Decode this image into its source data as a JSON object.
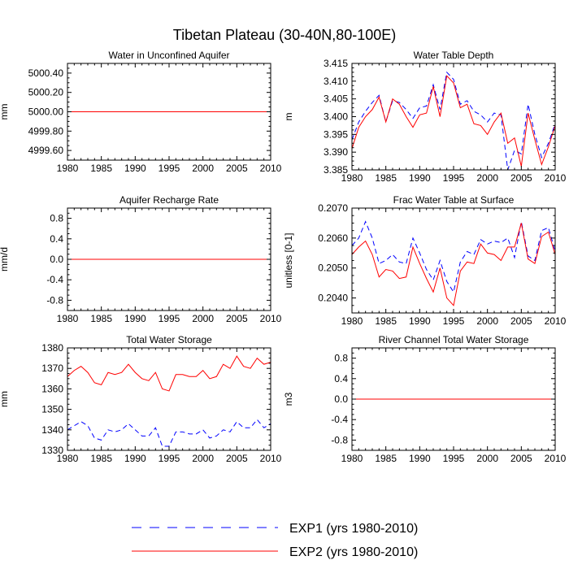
{
  "figure": {
    "title": "Tibetan Plateau (30-40N,80-100E)",
    "legend": [
      {
        "label": "EXP1 (yrs 1980-2010)",
        "color": "#0000ff",
        "dash": true
      },
      {
        "label": "EXP2 (yrs 1980-2010)",
        "color": "#ff0000",
        "dash": false
      }
    ]
  },
  "chart_data": [
    {
      "type": "line",
      "title": "Water in Unconfined Aquifer",
      "ylabel": "mm",
      "xlim": [
        1980,
        2010
      ],
      "ylim": [
        4999.5,
        5000.5
      ],
      "xticks": [
        1980,
        1985,
        1990,
        1995,
        2000,
        2005,
        2010
      ],
      "yticks": [
        4999.6,
        4999.8,
        5000.0,
        5000.2,
        5000.4
      ],
      "ytick_labels": [
        "4999.60",
        "4999.80",
        "5000.00",
        "5000.20",
        "5000.40"
      ],
      "x": [
        1980,
        2010
      ],
      "series": [
        {
          "name": "EXP1 (yrs 1980-2010)",
          "values": [
            5000.0,
            5000.0
          ]
        },
        {
          "name": "EXP2 (yrs 1980-2010)",
          "values": [
            5000.0,
            5000.0
          ]
        }
      ]
    },
    {
      "type": "line",
      "title": "Water Table Depth",
      "ylabel": "m",
      "xlim": [
        1980,
        2010
      ],
      "ylim": [
        3.385,
        3.415
      ],
      "xticks": [
        1980,
        1985,
        1990,
        1995,
        2000,
        2005,
        2010
      ],
      "yticks": [
        3.385,
        3.39,
        3.395,
        3.4,
        3.405,
        3.41,
        3.415
      ],
      "ytick_labels": [
        "3.385",
        "3.390",
        "3.395",
        "3.400",
        "3.405",
        "3.410",
        "3.415"
      ],
      "x": [
        1980,
        1981,
        1982,
        1983,
        1984,
        1985,
        1986,
        1987,
        1988,
        1989,
        1990,
        1991,
        1992,
        1993,
        1994,
        1995,
        1996,
        1997,
        1998,
        1999,
        2000,
        2001,
        2002,
        2003,
        2004,
        2005,
        2006,
        2007,
        2008,
        2009,
        2010
      ],
      "series": [
        {
          "name": "EXP1 (yrs 1980-2010)",
          "values": [
            3.3935,
            3.3985,
            3.4015,
            3.404,
            3.406,
            3.3985,
            3.4045,
            3.404,
            3.402,
            3.3995,
            3.4025,
            3.403,
            3.409,
            3.402,
            3.4125,
            3.4105,
            3.4035,
            3.4045,
            3.4015,
            3.4005,
            3.3985,
            3.401,
            3.4005,
            3.385,
            3.3905,
            3.3895,
            3.4035,
            3.395,
            3.3885,
            3.3925,
            3.398
          ]
        },
        {
          "name": "EXP2 (yrs 1980-2010)",
          "values": [
            3.391,
            3.397,
            3.4,
            3.402,
            3.4055,
            3.3985,
            3.405,
            3.4035,
            3.4,
            3.397,
            3.4005,
            3.401,
            3.4085,
            3.4,
            3.4115,
            3.4095,
            3.4025,
            3.4035,
            3.398,
            3.3975,
            3.395,
            3.3985,
            3.401,
            3.3925,
            3.394,
            3.386,
            3.401,
            3.3935,
            3.3865,
            3.3915,
            3.3975
          ]
        }
      ]
    },
    {
      "type": "line",
      "title": "Aquifer Recharge Rate",
      "ylabel": "mm/d",
      "xlim": [
        1980,
        2010
      ],
      "ylim": [
        -1.0,
        1.0
      ],
      "xticks": [
        1980,
        1985,
        1990,
        1995,
        2000,
        2005,
        2010
      ],
      "yticks": [
        -0.8,
        -0.4,
        0.0,
        0.4,
        0.8
      ],
      "ytick_labels": [
        "-0.8",
        "-0.4",
        "0.0",
        "0.4",
        "0.8"
      ],
      "x": [
        1980,
        2010
      ],
      "series": [
        {
          "name": "EXP1 (yrs 1980-2010)",
          "values": [
            0.0,
            0.0
          ]
        },
        {
          "name": "EXP2 (yrs 1980-2010)",
          "values": [
            0.0,
            0.0
          ]
        }
      ]
    },
    {
      "type": "line",
      "title": "Frac Water Table at Surface",
      "ylabel": "unitless [0-1]",
      "xlim": [
        1980,
        2010
      ],
      "ylim": [
        0.2035,
        0.207
      ],
      "xticks": [
        1980,
        1985,
        1990,
        1995,
        2000,
        2005,
        2010
      ],
      "yticks": [
        0.204,
        0.205,
        0.206,
        0.207
      ],
      "ytick_labels": [
        "0.2040",
        "0.2050",
        "0.2060",
        "0.2070"
      ],
      "x": [
        1980,
        1981,
        1982,
        1983,
        1984,
        1985,
        1986,
        1987,
        1988,
        1989,
        1990,
        1991,
        1992,
        1993,
        1994,
        1995,
        1996,
        1997,
        1998,
        1999,
        2000,
        2001,
        2002,
        2003,
        2004,
        2005,
        2006,
        2007,
        2008,
        2009,
        2010
      ],
      "series": [
        {
          "name": "EXP1 (yrs 1980-2010)",
          "values": [
            0.20575,
            0.206,
            0.20655,
            0.206,
            0.20515,
            0.20525,
            0.20545,
            0.2052,
            0.20515,
            0.206,
            0.2055,
            0.20495,
            0.2046,
            0.20525,
            0.20455,
            0.2042,
            0.2052,
            0.20555,
            0.20545,
            0.20595,
            0.2058,
            0.2059,
            0.20585,
            0.206,
            0.20535,
            0.20655,
            0.2054,
            0.20525,
            0.20625,
            0.20635,
            0.20555
          ]
        },
        {
          "name": "EXP2 (yrs 1980-2010)",
          "values": [
            0.20545,
            0.2057,
            0.2059,
            0.20545,
            0.2047,
            0.20495,
            0.2049,
            0.20465,
            0.2047,
            0.2057,
            0.20515,
            0.20465,
            0.2042,
            0.205,
            0.204,
            0.20375,
            0.2049,
            0.2052,
            0.20515,
            0.2058,
            0.2055,
            0.20545,
            0.20525,
            0.2057,
            0.2057,
            0.2065,
            0.2053,
            0.20515,
            0.20605,
            0.2062,
            0.20545
          ]
        }
      ]
    },
    {
      "type": "line",
      "title": "Total Water Storage",
      "ylabel": "mm",
      "xlim": [
        1980,
        2010
      ],
      "ylim": [
        1330,
        1380
      ],
      "xticks": [
        1980,
        1985,
        1990,
        1995,
        2000,
        2005,
        2010
      ],
      "yticks": [
        1330,
        1340,
        1350,
        1360,
        1370,
        1380
      ],
      "ytick_labels": [
        "1330",
        "1340",
        "1350",
        "1360",
        "1370",
        "1380"
      ],
      "x": [
        1980,
        1981,
        1982,
        1983,
        1984,
        1985,
        1986,
        1987,
        1988,
        1989,
        1990,
        1991,
        1992,
        1993,
        1994,
        1995,
        1996,
        1997,
        1998,
        1999,
        2000,
        2001,
        2002,
        2003,
        2004,
        2005,
        2006,
        2007,
        2008,
        2009,
        2010
      ],
      "series": [
        {
          "name": "EXP1 (yrs 1980-2010)",
          "values": [
            1340,
            1342,
            1344,
            1342,
            1336,
            1335,
            1340,
            1339,
            1340,
            1343,
            1340,
            1337,
            1337,
            1341,
            1332,
            1332,
            1339,
            1339,
            1338,
            1338,
            1340,
            1336,
            1337,
            1340,
            1339,
            1344,
            1341,
            1341,
            1345,
            1341,
            1343
          ]
        },
        {
          "name": "EXP2 (yrs 1980-2010)",
          "values": [
            1366,
            1369,
            1371,
            1368,
            1363,
            1362,
            1368,
            1367,
            1368,
            1372,
            1368,
            1365,
            1364,
            1368,
            1360,
            1359,
            1367,
            1367,
            1366,
            1366,
            1369,
            1365,
            1366,
            1372,
            1370,
            1376,
            1371,
            1370,
            1375,
            1372,
            1373
          ]
        }
      ]
    },
    {
      "type": "line",
      "title": "River Channel Total Water Storage",
      "ylabel": "m3",
      "xlim": [
        1980,
        2010
      ],
      "ylim": [
        -1.0,
        1.0
      ],
      "xticks": [
        1980,
        1985,
        1990,
        1995,
        2000,
        2005,
        2010
      ],
      "yticks": [
        -0.8,
        -0.4,
        0.0,
        0.4,
        0.8
      ],
      "ytick_labels": [
        "-0.8",
        "-0.4",
        "0.0",
        "0.4",
        "0.8"
      ],
      "x": [
        1980,
        2010
      ],
      "series": [
        {
          "name": "EXP1 (yrs 1980-2010)",
          "values": [
            0.0,
            0.0
          ]
        },
        {
          "name": "EXP2 (yrs 1980-2010)",
          "values": [
            0.0,
            0.0
          ]
        }
      ]
    }
  ]
}
